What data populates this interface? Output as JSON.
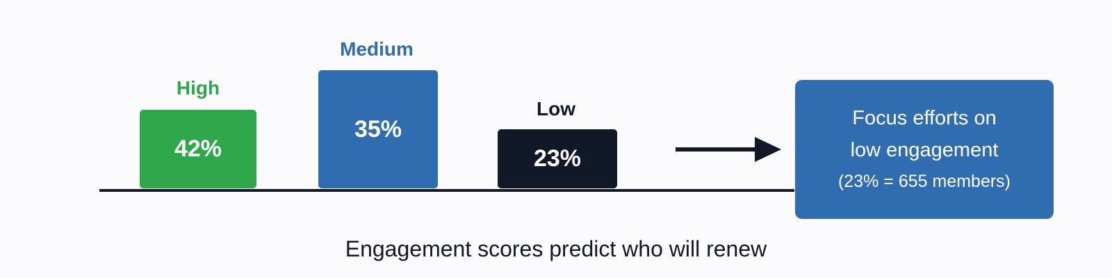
{
  "tiers": [
    {
      "label": "High",
      "value": "42%",
      "label_color": "#2ea84a",
      "box_color": "#2ea84a"
    },
    {
      "label": "Medium",
      "value": "35%",
      "label_color": "#2f6cb0",
      "box_color": "#2f6cb0"
    },
    {
      "label": "Low",
      "value": "23%",
      "label_color": "#111827",
      "box_color": "#111827"
    }
  ],
  "callout": {
    "line1": "Focus efforts on",
    "line2": "low engagement",
    "line3": "(23% = 655 members)",
    "color": "#2f6cb0"
  },
  "caption": "Engagement scores predict who will renew",
  "icons": {
    "arrow": "arrow-right-icon"
  }
}
